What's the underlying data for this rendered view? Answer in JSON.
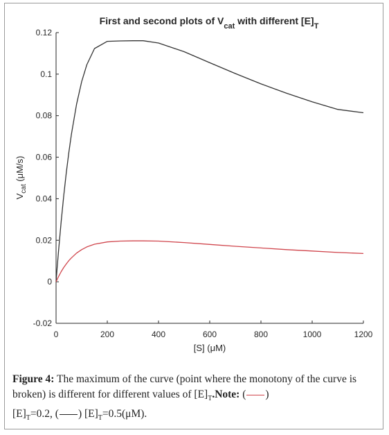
{
  "chart_data": {
    "type": "line",
    "title": {
      "prefix": "First and second plots of V",
      "sub1": "cat",
      "middle": " with different [E]",
      "sub2": "T"
    },
    "xlabel": "[S] (μM)",
    "ylabel": {
      "main": "V",
      "sub": "cat",
      "rest": " (μM/s)"
    },
    "xlim": [
      0,
      1200
    ],
    "ylim": [
      -0.02,
      0.12
    ],
    "xticks": [
      0,
      200,
      400,
      600,
      800,
      1000,
      1200
    ],
    "xtick_labels": [
      "0",
      "200",
      "400",
      "600",
      "800",
      "1000",
      "1200"
    ],
    "yticks": [
      -0.02,
      0,
      0.02,
      0.04,
      0.06,
      0.08,
      0.1,
      0.12
    ],
    "ytick_labels": [
      "-0.02",
      "0",
      "0.02",
      "0.04",
      "0.06",
      "0.08",
      "0.1",
      "0.12"
    ],
    "grid": false,
    "x": [
      0,
      5,
      10,
      20,
      30,
      40,
      50,
      60,
      80,
      100,
      120,
      150,
      200,
      250,
      300,
      340,
      400,
      500,
      600,
      700,
      800,
      900,
      1000,
      1100,
      1200
    ],
    "series": [
      {
        "color": "#333333",
        "values": [
          0.0,
          0.0078,
          0.0153,
          0.0291,
          0.0415,
          0.0526,
          0.0624,
          0.0711,
          0.0855,
          0.0964,
          0.1045,
          0.1123,
          0.1158,
          0.116,
          0.1161,
          0.1161,
          0.115,
          0.1108,
          0.1055,
          0.1003,
          0.0953,
          0.0908,
          0.0867,
          0.083,
          0.0814
        ]
      },
      {
        "color": "#d0454c",
        "values": [
          0.0,
          0.0013,
          0.0026,
          0.0049,
          0.0069,
          0.0086,
          0.0102,
          0.0115,
          0.0138,
          0.0155,
          0.0168,
          0.0181,
          0.0192,
          0.0196,
          0.0197,
          0.0197,
          0.0196,
          0.0189,
          0.018,
          0.0171,
          0.0163,
          0.0155,
          0.0148,
          0.0141,
          0.0136
        ]
      }
    ]
  },
  "caption": {
    "label": "Figure 4:",
    "text1": " The maximum of the curve (point where the monotony of the curve is broken) is different for different values of [E]",
    "sub_t1": "T",
    "note_label": ".Note:",
    "open1": " (",
    "close1": ")",
    "e2": "[E]",
    "sub_t2": "T",
    "val1": "=0.2, (",
    "close2": ")",
    "e3": " [E]",
    "sub_t3": "T",
    "val2": "=0.5(μM).",
    "colors": {
      "red": "#d0454c",
      "black": "#222222"
    }
  }
}
